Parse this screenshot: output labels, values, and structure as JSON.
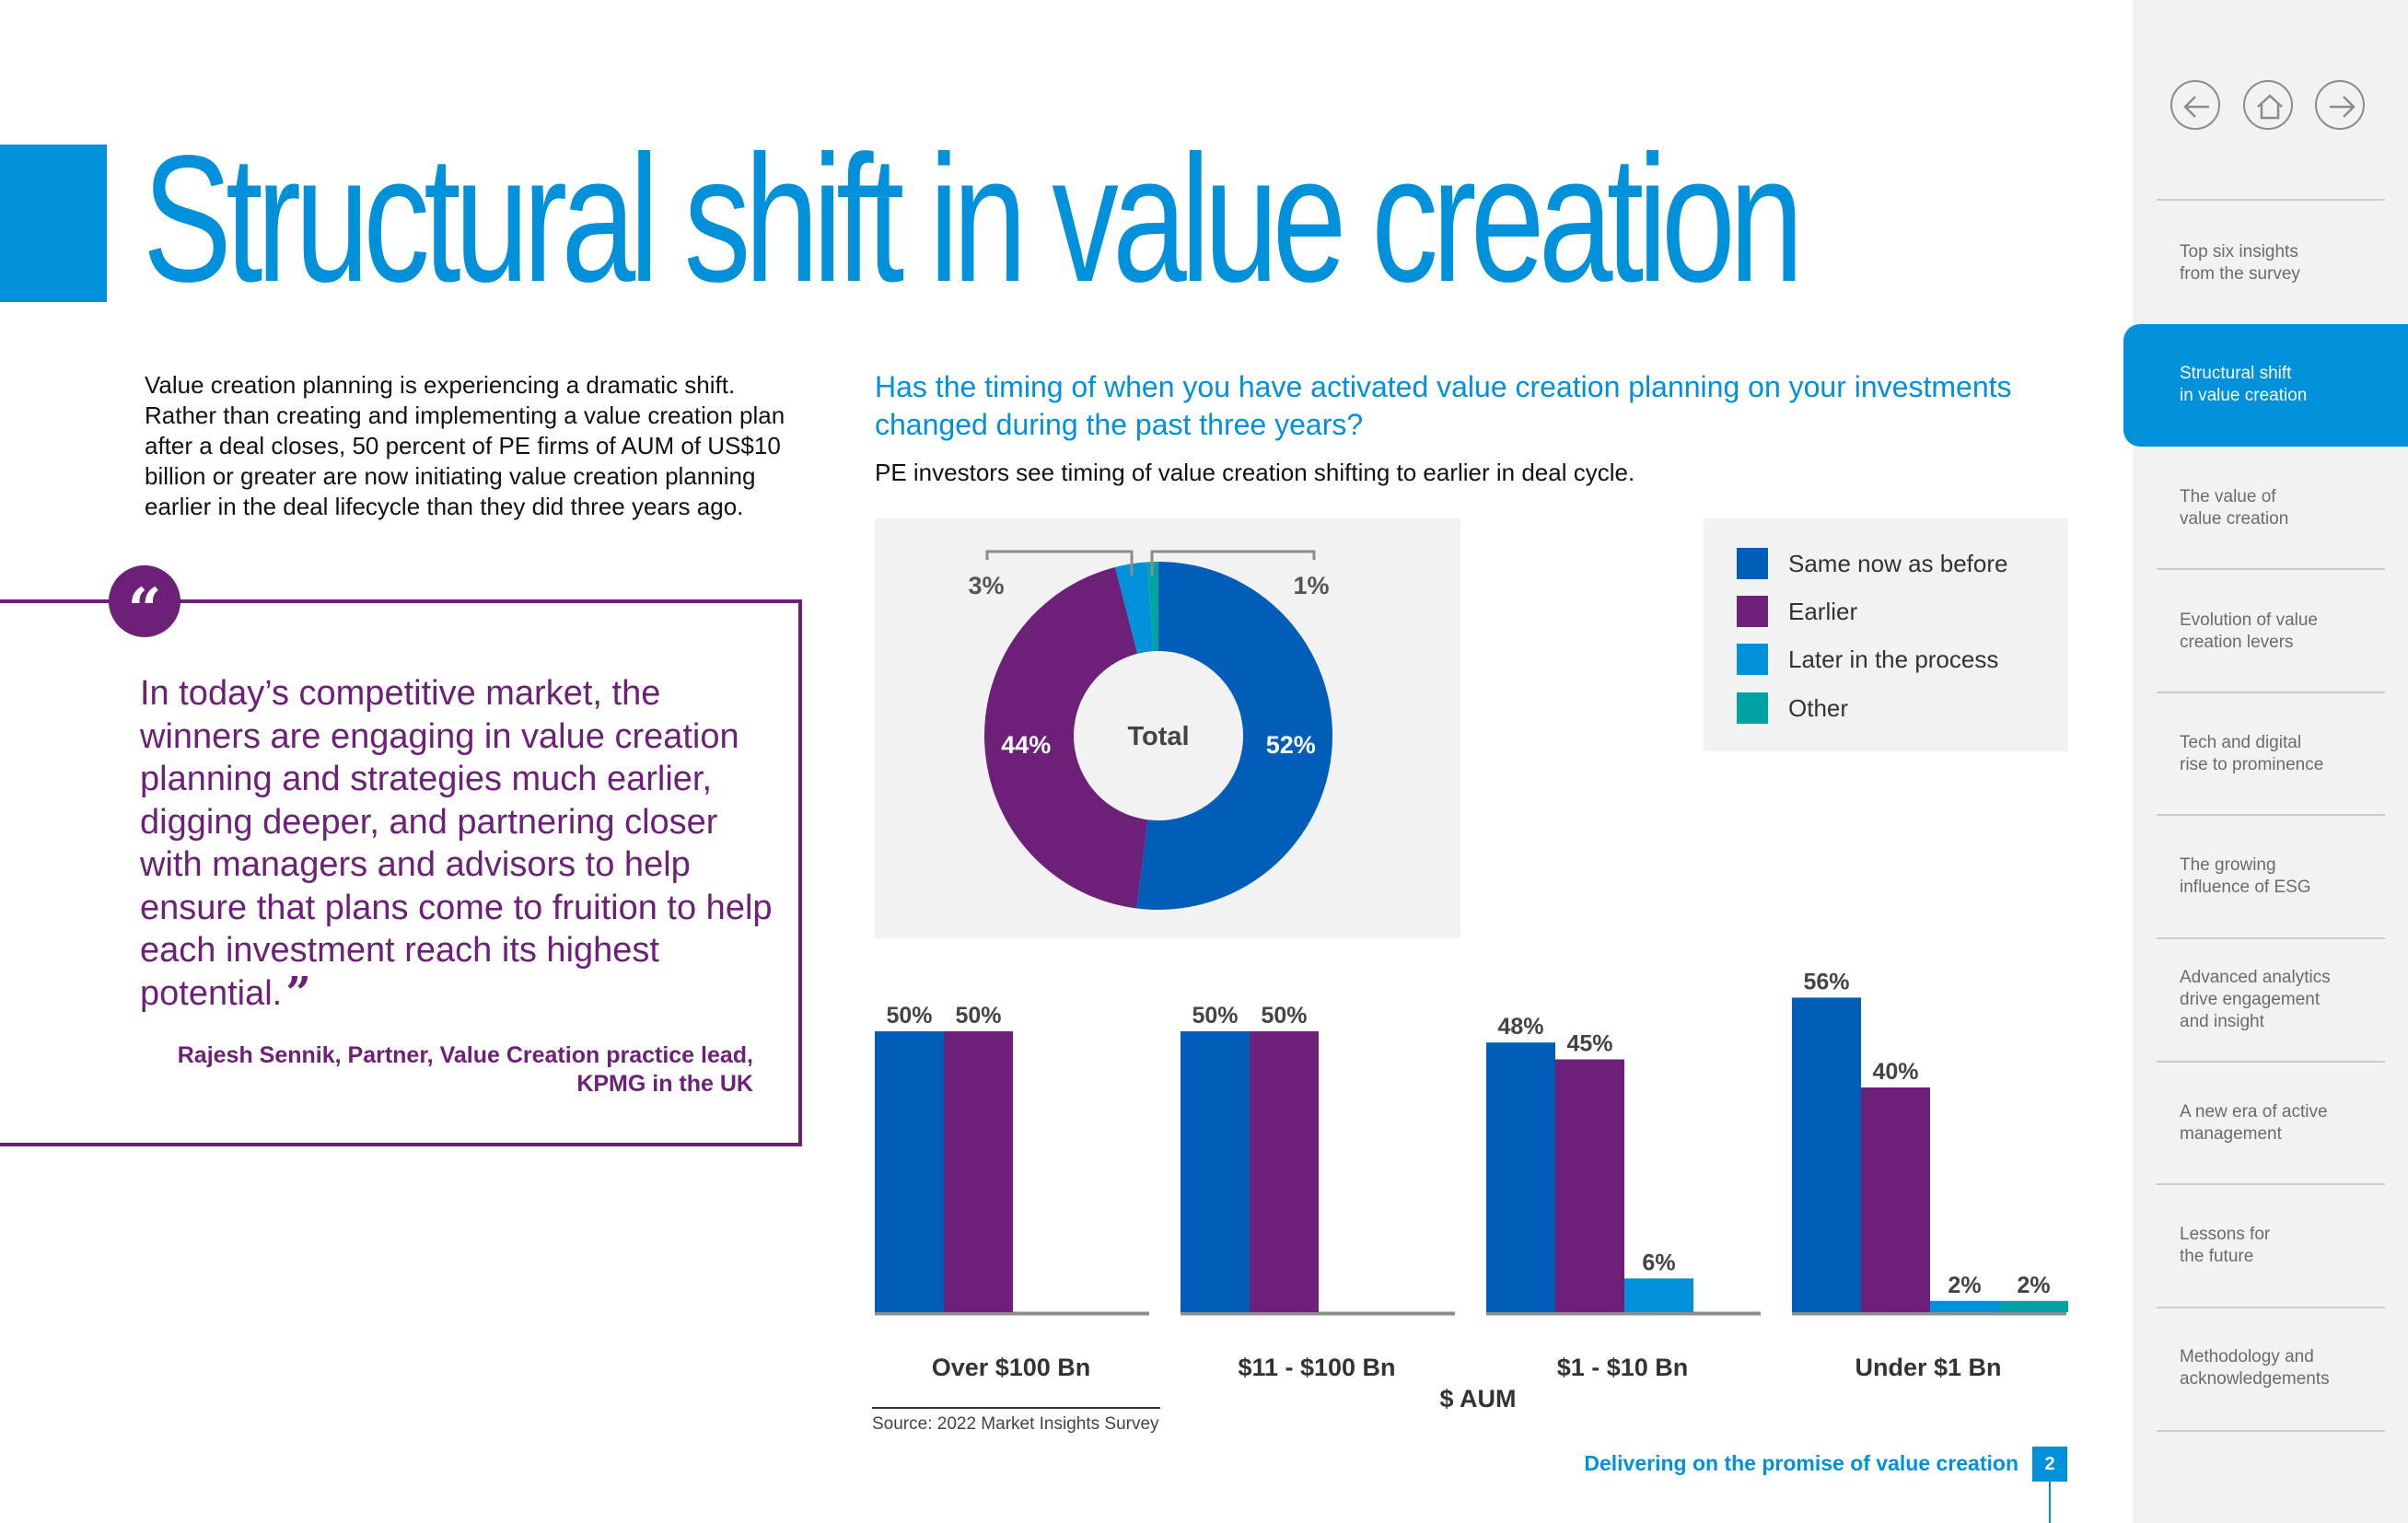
{
  "title": "Structural shift in value creation",
  "intro": "Value creation planning is experiencing a dramatic shift. Rather than creating and implementing a value creation plan after a deal closes, 50 percent of PE firms of AUM of US$10 billion or greater are now initiating value creation planning earlier in the deal lifecycle than they did three years ago.",
  "quote": {
    "mark": "“",
    "text": "In today’s competitive market, the winners are engaging in value creation planning and strategies much earlier, digging deeper, and partnering closer with managers and advisors to help ensure that plans come to fruition to help each investment reach its highest potential.",
    "close_mark": "”",
    "author_line1": "Rajesh Sennik, Partner, Value Creation practice lead,",
    "author_line2": "KPMG in the UK"
  },
  "question": "Has the timing of when you have activated value creation planning on your investments changed during the past three years?",
  "subtitle": "PE investors see timing of value creation shifting to earlier in deal cycle.",
  "colors": {
    "accent": "#0091da",
    "purple": "#6d2077",
    "same": "#005eb8",
    "earlier": "#6d2077",
    "later": "#0091da",
    "other": "#00a3a1"
  },
  "chart_data": [
    {
      "type": "pie",
      "title": "Total",
      "slices": [
        {
          "label": "Same now as before",
          "value": 52,
          "display": "52%",
          "color": "#005eb8"
        },
        {
          "label": "Earlier",
          "value": 44,
          "display": "44%",
          "color": "#6d2077"
        },
        {
          "label": "Later in the process",
          "value": 3,
          "display": "3%",
          "color": "#0091da"
        },
        {
          "label": "Other",
          "value": 1,
          "display": "1%",
          "color": "#00a3a1"
        }
      ]
    },
    {
      "type": "bar",
      "xlabel": "$ AUM",
      "ylabel": "",
      "ylim": [
        0,
        60
      ],
      "categories": [
        "Over $100 Bn",
        "$11 - $100 Bn",
        "$1 - $10 Bn",
        "Under $1 Bn"
      ],
      "series": [
        {
          "name": "Same now as before",
          "values": [
            50,
            50,
            48,
            56
          ],
          "labels": [
            "50%",
            "50%",
            "48%",
            "56%"
          ],
          "color": "#005eb8"
        },
        {
          "name": "Earlier",
          "values": [
            50,
            50,
            45,
            40
          ],
          "labels": [
            "50%",
            "50%",
            "45%",
            "40%"
          ],
          "color": "#6d2077"
        },
        {
          "name": "Later in the process",
          "values": [
            0,
            0,
            6,
            2
          ],
          "labels": [
            "",
            "",
            "6%",
            "2%"
          ],
          "color": "#0091da"
        },
        {
          "name": "Other",
          "values": [
            0,
            0,
            0,
            2
          ],
          "labels": [
            "",
            "",
            "",
            "2%"
          ],
          "color": "#00a3a1"
        }
      ]
    }
  ],
  "legend": [
    {
      "label": "Same now as before",
      "color": "#005eb8"
    },
    {
      "label": "Earlier",
      "color": "#6d2077"
    },
    {
      "label": "Later in the process",
      "color": "#0091da"
    },
    {
      "label": "Other",
      "color": "#00a3a1"
    }
  ],
  "source": "Source: 2022 Market Insights Survey",
  "footer": {
    "title": "Delivering on the promise of value creation",
    "page": "2"
  },
  "nav": {
    "back_icon": "arrow-left-icon",
    "home_icon": "home-icon",
    "forward_icon": "arrow-right-icon"
  },
  "toc": {
    "items": [
      {
        "line1": "Top six insights",
        "line2": "from the survey",
        "line3": ""
      },
      {
        "line1": "Structural shift",
        "line2": "in value creation",
        "line3": ""
      },
      {
        "line1": "The value of",
        "line2": "value creation",
        "line3": ""
      },
      {
        "line1": "Evolution of value",
        "line2": "creation levers",
        "line3": ""
      },
      {
        "line1": "Tech and digital",
        "line2": "rise to prominence",
        "line3": ""
      },
      {
        "line1": "The growing",
        "line2": "influence of ESG",
        "line3": ""
      },
      {
        "line1": "Advanced analytics",
        "line2": "drive engagement",
        "line3": "and insight"
      },
      {
        "line1": "A new era of active",
        "line2": "management",
        "line3": ""
      },
      {
        "line1": "Lessons for",
        "line2": "the future",
        "line3": ""
      },
      {
        "line1": "Methodology and",
        "line2": "acknowledgements",
        "line3": ""
      }
    ]
  }
}
